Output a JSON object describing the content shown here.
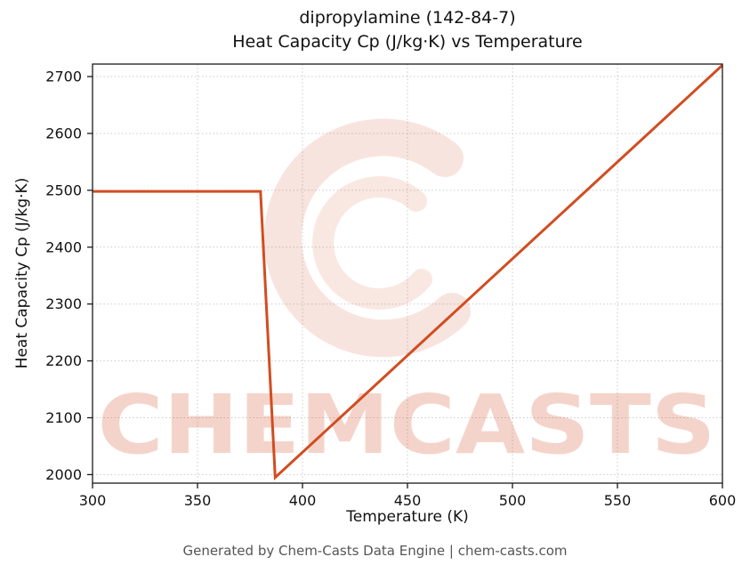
{
  "title_line1": "dipropylamine (142-84-7)",
  "title_line2": "Heat Capacity Cp (J/kg·K) vs Temperature",
  "footer": "Generated by Chem-Casts Data Engine | chem-casts.com",
  "watermark": {
    "text": "CHEMCASTS",
    "color": "#d14d21"
  },
  "chart_data": {
    "type": "line",
    "title": "dipropylamine (142-84-7) Heat Capacity Cp (J/kg·K) vs Temperature",
    "xlabel": "Temperature (K)",
    "ylabel": "Heat Capacity Cp (J/kg·K)",
    "xlim": [
      300,
      600
    ],
    "ylim": [
      1985,
      2722
    ],
    "xticks": [
      300,
      350,
      400,
      450,
      500,
      550,
      600
    ],
    "yticks": [
      2000,
      2100,
      2200,
      2300,
      2400,
      2500,
      2600,
      2700
    ],
    "grid": true,
    "grid_style": "dotted",
    "legend": "none",
    "line_color": "#d14d21",
    "series": [
      {
        "name": "Heat Capacity Cp",
        "points": [
          [
            300,
            2498
          ],
          [
            380,
            2498
          ],
          [
            387,
            1995
          ],
          [
            600,
            2720
          ]
        ]
      }
    ]
  }
}
